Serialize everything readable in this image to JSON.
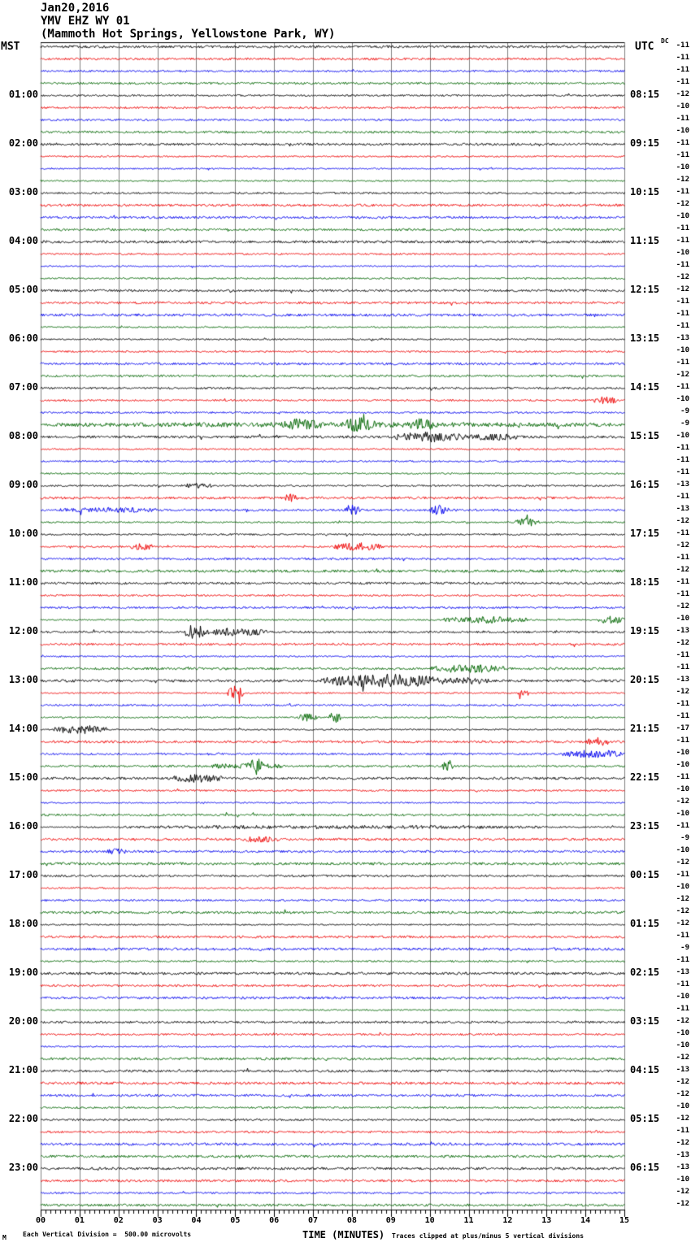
{
  "header": {
    "date": "Jan20,2016",
    "station_line": "YMV EHZ WY 01",
    "location_line": "(Mammoth Hot Springs, Yellowstone Park, WY)",
    "left_timezone": "MST",
    "right_timezone": "UTC",
    "dc_label": "DC"
  },
  "footer": {
    "corner_mark": "M",
    "scale_note": "Each Vertical Division =  500.00 microvolts",
    "xaxis_title": "TIME (MINUTES)",
    "clip_note": "Traces clipped at plus/minus 5 vertical divisions"
  },
  "chart_data": {
    "type": "line",
    "subtype": "helicorder-seismogram",
    "title": "YMV EHZ WY 01 (Mammoth Hot Springs, Yellowstone Park, WY) Jan20,2016",
    "xlabel": "TIME (MINUTES)",
    "x_range_minutes": [
      0,
      15
    ],
    "x_tick_labels": [
      "00",
      "01",
      "02",
      "03",
      "04",
      "05",
      "06",
      "07",
      "08",
      "09",
      "10",
      "11",
      "12",
      "13",
      "14",
      "15"
    ],
    "minor_ticks_per_minute": 8,
    "minutes_per_row": 15,
    "rows": 96,
    "label_every_n_rows": 4,
    "trace_color_cycle": [
      "#000000",
      "#ee0000",
      "#0000ee",
      "#006600"
    ],
    "grid_color": "#808080",
    "left_time_labels": [
      "01:00",
      "02:00",
      "03:00",
      "04:00",
      "05:00",
      "06:00",
      "07:00",
      "08:00",
      "09:00",
      "10:00",
      "11:00",
      "12:00",
      "13:00",
      "14:00",
      "15:00",
      "16:00",
      "17:00",
      "18:00",
      "19:00",
      "20:00",
      "21:00",
      "22:00",
      "23:00"
    ],
    "right_time_labels": [
      "08:15",
      "09:15",
      "10:15",
      "11:15",
      "12:15",
      "13:15",
      "14:15",
      "15:15",
      "16:15",
      "17:15",
      "18:15",
      "19:15",
      "20:15",
      "21:15",
      "22:15",
      "23:15",
      "00:15",
      "01:15",
      "02:15",
      "03:15",
      "04:15",
      "05:15",
      "06:15"
    ],
    "dc_offsets": [
      -11,
      -11,
      -11,
      -11,
      -12,
      -10,
      -11,
      -10,
      -11,
      -11,
      -10,
      -12,
      -11,
      -12,
      -10,
      -11,
      -11,
      -10,
      -11,
      -12,
      -12,
      -11,
      -11,
      -11,
      -13,
      -10,
      -11,
      -12,
      -11,
      -10,
      -9,
      -9,
      -10,
      -11,
      -11,
      -11,
      -13,
      -11,
      -13,
      -12,
      -11,
      -12,
      -11,
      -12,
      -11,
      -11,
      -12,
      -10,
      -13,
      -12,
      -11,
      -11,
      -13,
      -12,
      -11,
      -11,
      -17,
      -11,
      -10,
      -10,
      -11,
      -10,
      -12,
      -10,
      -11,
      -9,
      -10,
      -12,
      -11,
      -10,
      -12,
      -12,
      -12,
      -11,
      -9,
      -11,
      -13,
      -11,
      -10,
      -11,
      -12,
      -10,
      -10,
      -12,
      -13,
      -12,
      -12,
      -10,
      -12,
      -11,
      -12,
      -13,
      -13,
      -10,
      -12,
      -12
    ],
    "events": [
      {
        "row": 29,
        "start": 14.2,
        "end": 14.8,
        "amp": 4
      },
      {
        "row": 31,
        "start": 0.3,
        "end": 15.0,
        "amp": 1.6
      },
      {
        "row": 31,
        "start": 6.2,
        "end": 7.2,
        "amp": 5
      },
      {
        "row": 31,
        "start": 7.8,
        "end": 8.6,
        "amp": 6
      },
      {
        "row": 31,
        "start": 9.5,
        "end": 10.1,
        "amp": 5
      },
      {
        "row": 32,
        "start": 9.1,
        "end": 11.0,
        "amp": 5
      },
      {
        "row": 32,
        "start": 11.0,
        "end": 12.3,
        "amp": 3
      },
      {
        "row": 36,
        "start": 3.6,
        "end": 4.4,
        "amp": 2.5
      },
      {
        "row": 37,
        "start": 6.2,
        "end": 6.6,
        "amp": 4
      },
      {
        "row": 38,
        "start": 0.5,
        "end": 3.0,
        "amp": 2.2
      },
      {
        "row": 38,
        "start": 7.8,
        "end": 8.2,
        "amp": 6
      },
      {
        "row": 38,
        "start": 10.0,
        "end": 10.5,
        "amp": 5
      },
      {
        "row": 39,
        "start": 12.2,
        "end": 12.8,
        "amp": 5
      },
      {
        "row": 41,
        "start": 2.3,
        "end": 2.9,
        "amp": 3
      },
      {
        "row": 41,
        "start": 7.5,
        "end": 8.8,
        "amp": 4
      },
      {
        "row": 47,
        "start": 10.3,
        "end": 12.6,
        "amp": 3.5
      },
      {
        "row": 47,
        "start": 14.3,
        "end": 15.0,
        "amp": 4
      },
      {
        "row": 48,
        "start": 3.7,
        "end": 4.2,
        "amp": 9
      },
      {
        "row": 48,
        "start": 4.2,
        "end": 5.8,
        "amp": 4
      },
      {
        "row": 51,
        "start": 10.0,
        "end": 11.9,
        "amp": 4
      },
      {
        "row": 52,
        "start": 7.2,
        "end": 10.4,
        "amp": 7
      },
      {
        "row": 52,
        "start": 10.4,
        "end": 11.6,
        "amp": 3
      },
      {
        "row": 53,
        "start": 4.8,
        "end": 5.2,
        "amp": 8
      },
      {
        "row": 53,
        "start": 12.2,
        "end": 12.6,
        "amp": 3
      },
      {
        "row": 55,
        "start": 6.6,
        "end": 7.1,
        "amp": 4
      },
      {
        "row": 55,
        "start": 7.4,
        "end": 7.7,
        "amp": 6
      },
      {
        "row": 56,
        "start": 0.3,
        "end": 1.7,
        "amp": 5
      },
      {
        "row": 57,
        "start": 14.0,
        "end": 14.6,
        "amp": 5
      },
      {
        "row": 58,
        "start": 13.4,
        "end": 15.0,
        "amp": 4
      },
      {
        "row": 59,
        "start": 4.4,
        "end": 6.2,
        "amp": 3
      },
      {
        "row": 59,
        "start": 5.4,
        "end": 5.7,
        "amp": 7
      },
      {
        "row": 59,
        "start": 10.3,
        "end": 10.6,
        "amp": 7
      },
      {
        "row": 60,
        "start": 3.4,
        "end": 4.7,
        "amp": 4
      },
      {
        "row": 64,
        "start": 2.0,
        "end": 13.0,
        "amp": 1.4
      },
      {
        "row": 65,
        "start": 5.2,
        "end": 6.1,
        "amp": 2.5
      },
      {
        "row": 66,
        "start": 1.6,
        "end": 2.2,
        "amp": 2.5
      }
    ],
    "noise_seed": 20160120
  }
}
